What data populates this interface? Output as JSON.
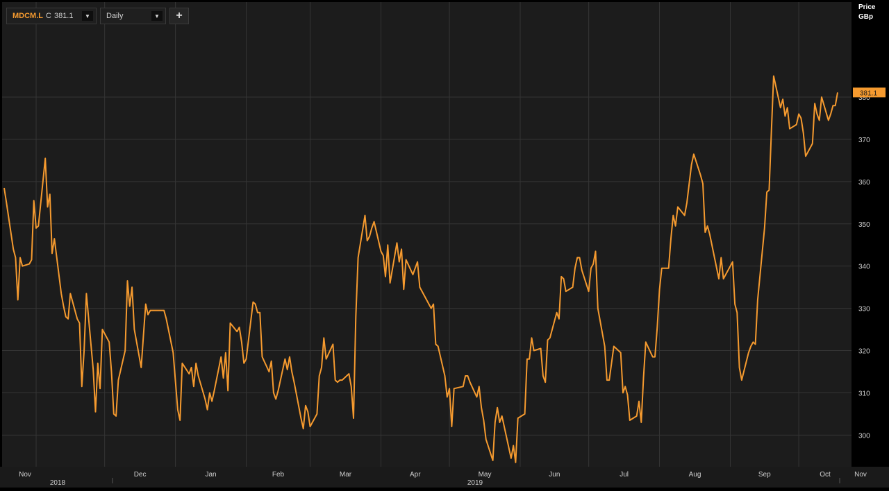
{
  "toolbar": {
    "symbol": "MDCM.L",
    "close_prefix": "C",
    "close_value": "381.1",
    "period": "Daily",
    "add_label": "+"
  },
  "colors": {
    "line": "#f59a2f",
    "background": "#1c1c1c",
    "grid": "#353535",
    "axis_text": "#d0d0d0"
  },
  "chart_data": {
    "type": "line",
    "title": "",
    "ylabel": "Price",
    "yunit": "GBp",
    "ylim": [
      292.5,
      402.5
    ],
    "y_ticks": [
      300,
      310,
      320,
      330,
      340,
      350,
      360,
      370,
      380
    ],
    "grid": true,
    "last_value": "381.1",
    "x_month_ticks": [
      {
        "label": "Nov",
        "date": "2018-11-01"
      },
      {
        "label": "Dec",
        "date": "2018-12-01"
      },
      {
        "label": "Jan",
        "date": "2019-01-01"
      },
      {
        "label": "Feb",
        "date": "2019-02-01"
      },
      {
        "label": "Mar",
        "date": "2019-03-01"
      },
      {
        "label": "Apr",
        "date": "2019-04-01"
      },
      {
        "label": "May",
        "date": "2019-05-01"
      },
      {
        "label": "Jun",
        "date": "2019-06-01"
      },
      {
        "label": "Jul",
        "date": "2019-07-01"
      },
      {
        "label": "Aug",
        "date": "2019-08-01"
      },
      {
        "label": "Sep",
        "date": "2019-09-01"
      },
      {
        "label": "Oct",
        "date": "2019-10-01"
      },
      {
        "label": "Nov",
        "date": "2019-11-01"
      }
    ],
    "x_year_ticks": [
      {
        "label": "2018",
        "date": "2018-11-15"
      },
      {
        "label": "2019",
        "date": "2019-06-01"
      }
    ],
    "series": [
      {
        "values": [
          [
            "2018-10-18",
            358.5
          ],
          [
            "2018-10-19",
            355
          ],
          [
            "2018-10-22",
            344
          ],
          [
            "2018-10-23",
            342
          ],
          [
            "2018-10-24",
            332
          ],
          [
            "2018-10-25",
            342
          ],
          [
            "2018-10-26",
            340
          ],
          [
            "2018-10-29",
            340.5
          ],
          [
            "2018-10-30",
            341.5
          ],
          [
            "2018-10-31",
            355.5
          ],
          [
            "2018-11-01",
            349
          ],
          [
            "2018-11-02",
            349.5
          ],
          [
            "2018-11-05",
            365.5
          ],
          [
            "2018-11-06",
            354
          ],
          [
            "2018-11-07",
            357
          ],
          [
            "2018-11-08",
            343
          ],
          [
            "2018-11-09",
            346.5
          ],
          [
            "2018-11-12",
            333.5
          ],
          [
            "2018-11-13",
            330.5
          ],
          [
            "2018-11-14",
            328
          ],
          [
            "2018-11-15",
            327.5
          ],
          [
            "2018-11-16",
            333.5
          ],
          [
            "2018-11-19",
            327.5
          ],
          [
            "2018-11-20",
            326.5
          ],
          [
            "2018-11-21",
            311.5
          ],
          [
            "2018-11-22",
            320
          ],
          [
            "2018-11-23",
            333.5
          ],
          [
            "2018-11-26",
            315.5
          ],
          [
            "2018-11-27",
            305.5
          ],
          [
            "2018-11-28",
            317
          ],
          [
            "2018-11-29",
            311
          ],
          [
            "2018-11-30",
            325
          ],
          [
            "2018-12-03",
            322
          ],
          [
            "2018-12-04",
            315
          ],
          [
            "2018-12-05",
            305
          ],
          [
            "2018-12-06",
            304.5
          ],
          [
            "2018-12-07",
            313
          ],
          [
            "2018-12-10",
            320
          ],
          [
            "2018-12-11",
            336.5
          ],
          [
            "2018-12-12",
            330.5
          ],
          [
            "2018-12-13",
            335
          ],
          [
            "2018-12-14",
            325
          ],
          [
            "2018-12-17",
            316
          ],
          [
            "2018-12-18",
            323.5
          ],
          [
            "2018-12-19",
            331
          ],
          [
            "2018-12-20",
            328.5
          ],
          [
            "2018-12-21",
            329.5
          ],
          [
            "2018-12-24",
            329.5
          ],
          [
            "2018-12-27",
            329.5
          ],
          [
            "2018-12-28",
            327.5
          ],
          [
            "2018-12-31",
            319.5
          ],
          [
            "2019-01-02",
            306
          ],
          [
            "2019-01-03",
            303.5
          ],
          [
            "2019-01-04",
            317
          ],
          [
            "2019-01-07",
            314.5
          ],
          [
            "2019-01-08",
            316
          ],
          [
            "2019-01-09",
            311.5
          ],
          [
            "2019-01-10",
            317
          ],
          [
            "2019-01-11",
            314
          ],
          [
            "2019-01-14",
            308.5
          ],
          [
            "2019-01-15",
            306
          ],
          [
            "2019-01-16",
            310
          ],
          [
            "2019-01-17",
            308
          ],
          [
            "2019-01-18",
            310.5
          ],
          [
            "2019-01-21",
            318.5
          ],
          [
            "2019-01-22",
            313.5
          ],
          [
            "2019-01-23",
            319.5
          ],
          [
            "2019-01-24",
            310.5
          ],
          [
            "2019-01-25",
            326.5
          ],
          [
            "2019-01-28",
            324.5
          ],
          [
            "2019-01-29",
            325.5
          ],
          [
            "2019-01-30",
            322
          ],
          [
            "2019-01-31",
            317
          ],
          [
            "2019-02-01",
            318
          ],
          [
            "2019-02-04",
            331.5
          ],
          [
            "2019-02-05",
            331
          ],
          [
            "2019-02-06",
            329
          ],
          [
            "2019-02-07",
            329
          ],
          [
            "2019-02-08",
            318.5
          ],
          [
            "2019-02-11",
            315
          ],
          [
            "2019-02-12",
            317.5
          ],
          [
            "2019-02-13",
            310
          ],
          [
            "2019-02-14",
            308.5
          ],
          [
            "2019-02-15",
            310.5
          ],
          [
            "2019-02-18",
            318
          ],
          [
            "2019-02-19",
            315.5
          ],
          [
            "2019-02-20",
            318.5
          ],
          [
            "2019-02-21",
            315
          ],
          [
            "2019-02-22",
            312.5
          ],
          [
            "2019-02-25",
            304
          ],
          [
            "2019-02-26",
            301.5
          ],
          [
            "2019-02-27",
            307
          ],
          [
            "2019-02-28",
            305.5
          ],
          [
            "2019-03-01",
            302
          ],
          [
            "2019-03-04",
            305
          ],
          [
            "2019-03-05",
            314
          ],
          [
            "2019-03-06",
            316
          ],
          [
            "2019-03-07",
            323
          ],
          [
            "2019-03-08",
            318
          ],
          [
            "2019-03-11",
            321.5
          ],
          [
            "2019-03-12",
            313
          ],
          [
            "2019-03-13",
            312.5
          ],
          [
            "2019-03-14",
            313
          ],
          [
            "2019-03-15",
            313
          ],
          [
            "2019-03-18",
            314.5
          ],
          [
            "2019-03-19",
            311.5
          ],
          [
            "2019-03-20",
            304
          ],
          [
            "2019-03-21",
            328
          ],
          [
            "2019-03-22",
            342
          ],
          [
            "2019-03-25",
            352
          ],
          [
            "2019-03-26",
            346
          ],
          [
            "2019-03-27",
            347
          ],
          [
            "2019-03-28",
            349
          ],
          [
            "2019-03-29",
            350.5
          ],
          [
            "2019-04-01",
            343.5
          ],
          [
            "2019-04-02",
            342.5
          ],
          [
            "2019-04-03",
            337.5
          ],
          [
            "2019-04-04",
            345
          ],
          [
            "2019-04-05",
            336
          ],
          [
            "2019-04-08",
            345.5
          ],
          [
            "2019-04-09",
            341
          ],
          [
            "2019-04-10",
            344
          ],
          [
            "2019-04-11",
            334.5
          ],
          [
            "2019-04-12",
            341.5
          ],
          [
            "2019-04-15",
            338
          ],
          [
            "2019-04-16",
            339.5
          ],
          [
            "2019-04-17",
            341
          ],
          [
            "2019-04-18",
            335
          ],
          [
            "2019-04-23",
            330
          ],
          [
            "2019-04-24",
            331
          ],
          [
            "2019-04-25",
            321.5
          ],
          [
            "2019-04-26",
            321
          ],
          [
            "2019-04-29",
            314
          ],
          [
            "2019-04-30",
            309
          ],
          [
            "2019-05-01",
            311
          ],
          [
            "2019-05-02",
            302
          ],
          [
            "2019-05-03",
            311
          ],
          [
            "2019-05-07",
            311.5
          ],
          [
            "2019-05-08",
            314
          ],
          [
            "2019-05-09",
            314
          ],
          [
            "2019-05-10",
            312.5
          ],
          [
            "2019-05-13",
            309
          ],
          [
            "2019-05-14",
            311.5
          ],
          [
            "2019-05-15",
            306.5
          ],
          [
            "2019-05-16",
            303.5
          ],
          [
            "2019-05-17",
            299
          ],
          [
            "2019-05-20",
            294
          ],
          [
            "2019-05-21",
            303
          ],
          [
            "2019-05-22",
            306.5
          ],
          [
            "2019-05-23",
            303
          ],
          [
            "2019-05-24",
            304.5
          ],
          [
            "2019-05-28",
            294.5
          ],
          [
            "2019-05-29",
            297.5
          ],
          [
            "2019-05-30",
            293.5
          ],
          [
            "2019-05-31",
            304
          ],
          [
            "2019-06-03",
            305
          ],
          [
            "2019-06-04",
            318
          ],
          [
            "2019-06-05",
            318
          ],
          [
            "2019-06-06",
            323
          ],
          [
            "2019-06-07",
            320
          ],
          [
            "2019-06-10",
            320.5
          ],
          [
            "2019-06-11",
            314
          ],
          [
            "2019-06-12",
            312.5
          ],
          [
            "2019-06-13",
            322.5
          ],
          [
            "2019-06-14",
            323
          ],
          [
            "2019-06-17",
            329
          ],
          [
            "2019-06-18",
            327.5
          ],
          [
            "2019-06-19",
            337.5
          ],
          [
            "2019-06-20",
            337
          ],
          [
            "2019-06-21",
            334
          ],
          [
            "2019-06-24",
            335
          ],
          [
            "2019-06-25",
            339.5
          ],
          [
            "2019-06-26",
            342
          ],
          [
            "2019-06-27",
            342
          ],
          [
            "2019-06-28",
            339
          ],
          [
            "2019-07-01",
            334
          ],
          [
            "2019-07-02",
            339.5
          ],
          [
            "2019-07-03",
            340.5
          ],
          [
            "2019-07-04",
            343.5
          ],
          [
            "2019-07-05",
            330
          ],
          [
            "2019-07-08",
            321
          ],
          [
            "2019-07-09",
            313
          ],
          [
            "2019-07-10",
            313
          ],
          [
            "2019-07-11",
            317
          ],
          [
            "2019-07-12",
            321
          ],
          [
            "2019-07-15",
            319.5
          ],
          [
            "2019-07-16",
            310
          ],
          [
            "2019-07-17",
            311.5
          ],
          [
            "2019-07-18",
            309.5
          ],
          [
            "2019-07-19",
            303.5
          ],
          [
            "2019-07-22",
            304.5
          ],
          [
            "2019-07-23",
            308
          ],
          [
            "2019-07-24",
            303
          ],
          [
            "2019-07-25",
            313.5
          ],
          [
            "2019-07-26",
            322
          ],
          [
            "2019-07-29",
            318.5
          ],
          [
            "2019-07-30",
            318.5
          ],
          [
            "2019-07-31",
            325.5
          ],
          [
            "2019-08-01",
            334.5
          ],
          [
            "2019-08-02",
            339.5
          ],
          [
            "2019-08-05",
            339.5
          ],
          [
            "2019-08-06",
            346.5
          ],
          [
            "2019-08-07",
            352
          ],
          [
            "2019-08-08",
            349.5
          ],
          [
            "2019-08-09",
            354
          ],
          [
            "2019-08-12",
            352
          ],
          [
            "2019-08-13",
            355
          ],
          [
            "2019-08-14",
            359.5
          ],
          [
            "2019-08-15",
            364
          ],
          [
            "2019-08-16",
            366.5
          ],
          [
            "2019-08-19",
            361.5
          ],
          [
            "2019-08-20",
            359.5
          ],
          [
            "2019-08-21",
            348
          ],
          [
            "2019-08-22",
            349.5
          ],
          [
            "2019-08-23",
            347.5
          ],
          [
            "2019-08-27",
            337
          ],
          [
            "2019-08-28",
            342
          ],
          [
            "2019-08-29",
            337
          ],
          [
            "2019-08-30",
            338
          ],
          [
            "2019-09-02",
            341
          ],
          [
            "2019-09-03",
            331
          ],
          [
            "2019-09-04",
            329
          ],
          [
            "2019-09-05",
            316
          ],
          [
            "2019-09-06",
            313
          ],
          [
            "2019-09-09",
            319.5
          ],
          [
            "2019-09-10",
            321
          ],
          [
            "2019-09-11",
            322
          ],
          [
            "2019-09-12",
            321.5
          ],
          [
            "2019-09-13",
            332
          ],
          [
            "2019-09-16",
            349
          ],
          [
            "2019-09-17",
            357.5
          ],
          [
            "2019-09-18",
            358
          ],
          [
            "2019-09-19",
            372
          ],
          [
            "2019-09-20",
            385
          ],
          [
            "2019-09-23",
            377.5
          ],
          [
            "2019-09-24",
            379.5
          ],
          [
            "2019-09-25",
            375.5
          ],
          [
            "2019-09-26",
            377.5
          ],
          [
            "2019-09-27",
            372.5
          ],
          [
            "2019-09-30",
            373.5
          ],
          [
            "2019-10-01",
            376
          ],
          [
            "2019-10-02",
            375
          ],
          [
            "2019-10-03",
            371.5
          ],
          [
            "2019-10-04",
            366
          ],
          [
            "2019-10-07",
            369
          ],
          [
            "2019-10-08",
            378.5
          ],
          [
            "2019-10-09",
            376
          ],
          [
            "2019-10-10",
            374.5
          ],
          [
            "2019-10-11",
            380
          ],
          [
            "2019-10-14",
            374.5
          ],
          [
            "2019-10-15",
            376
          ],
          [
            "2019-10-16",
            378
          ],
          [
            "2019-10-17",
            378
          ],
          [
            "2019-10-18",
            381.1
          ]
        ]
      }
    ]
  }
}
